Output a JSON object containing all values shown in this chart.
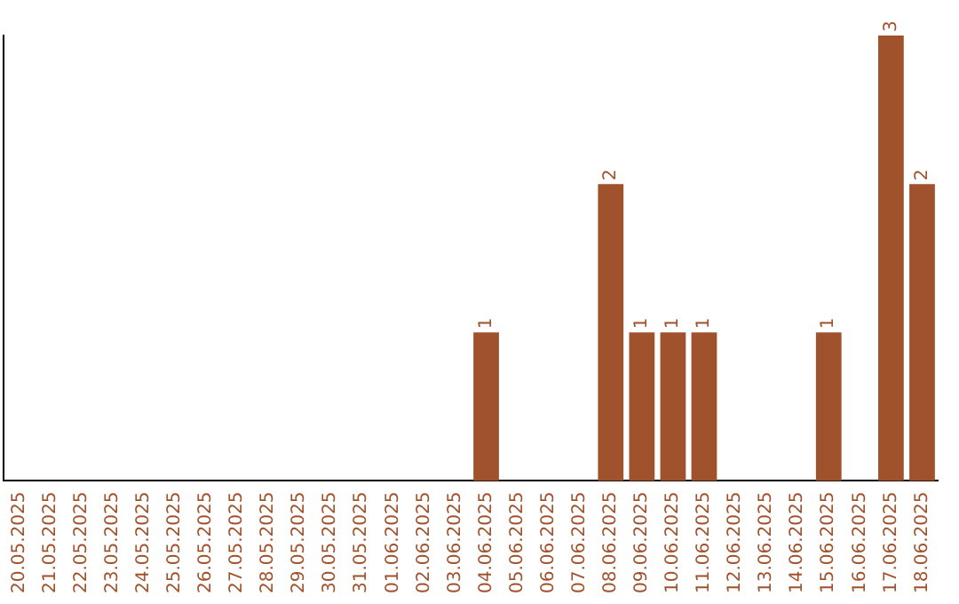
{
  "chart_data": {
    "type": "bar",
    "categories": [
      "20.05.2025",
      "21.05.2025",
      "22.05.2025",
      "23.05.2025",
      "24.05.2025",
      "25.05.2025",
      "26.05.2025",
      "27.05.2025",
      "28.05.2025",
      "29.05.2025",
      "30.05.2025",
      "31.05.2025",
      "01.06.2025",
      "02.06.2025",
      "03.06.2025",
      "04.06.2025",
      "05.06.2025",
      "06.06.2025",
      "07.06.2025",
      "08.06.2025",
      "09.06.2025",
      "10.06.2025",
      "11.06.2025",
      "12.06.2025",
      "13.06.2025",
      "14.06.2025",
      "15.06.2025",
      "16.06.2025",
      "17.06.2025",
      "18.06.2025"
    ],
    "values": [
      null,
      null,
      null,
      null,
      null,
      null,
      null,
      null,
      null,
      null,
      null,
      null,
      null,
      null,
      null,
      1,
      null,
      null,
      null,
      2,
      1,
      1,
      1,
      null,
      null,
      null,
      1,
      null,
      3,
      2
    ],
    "data_labels": true,
    "color": "#a0522d",
    "grid": false,
    "legend": false
  }
}
